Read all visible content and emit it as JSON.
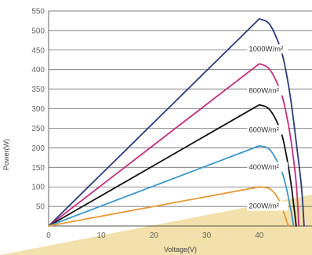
{
  "chart_data": {
    "type": "line",
    "xlabel": "Voltage(V)",
    "ylabel": "Power(W)",
    "xlim": [
      0,
      50
    ],
    "ylim": [
      0,
      550
    ],
    "x_ticks": [
      0,
      10,
      20,
      30,
      40
    ],
    "y_ticks": [
      50,
      100,
      150,
      200,
      250,
      300,
      350,
      400,
      450,
      500,
      550
    ],
    "grid": "horizontal",
    "series": [
      {
        "name": "1000W/m²",
        "color": "#2b3a7a",
        "label_at": [
          38,
          447
        ],
        "x": [
          0,
          40,
          42,
          44,
          45,
          46,
          47,
          48,
          48.5
        ],
        "y": [
          0,
          530,
          515,
          455,
          400,
          320,
          215,
          100,
          0
        ]
      },
      {
        "name": "800W/m²",
        "color": "#c2307e",
        "label_at": [
          38,
          340
        ],
        "x": [
          0,
          40,
          42,
          44,
          45,
          46,
          47,
          47.5
        ],
        "y": [
          0,
          415,
          400,
          345,
          295,
          220,
          110,
          0
        ]
      },
      {
        "name": "600W/m²",
        "color": "#111111",
        "label_at": [
          38,
          240
        ],
        "x": [
          0,
          40,
          42,
          44,
          45,
          46,
          47
        ],
        "y": [
          0,
          310,
          297,
          245,
          190,
          110,
          0
        ]
      },
      {
        "name": "400W/m²",
        "color": "#3a97c8",
        "label_at": [
          38,
          145
        ],
        "x": [
          0,
          40,
          42,
          44,
          45,
          46,
          46.5
        ],
        "y": [
          0,
          205,
          195,
          148,
          105,
          40,
          0
        ]
      },
      {
        "name": "200W/m²",
        "color": "#e59a35",
        "label_at": [
          38,
          45
        ],
        "x": [
          0,
          40,
          42,
          43.5,
          44.5,
          45.5
        ],
        "y": [
          0,
          100,
          95,
          72,
          40,
          0
        ]
      }
    ],
    "background_band_color": "#f2e1ac"
  }
}
